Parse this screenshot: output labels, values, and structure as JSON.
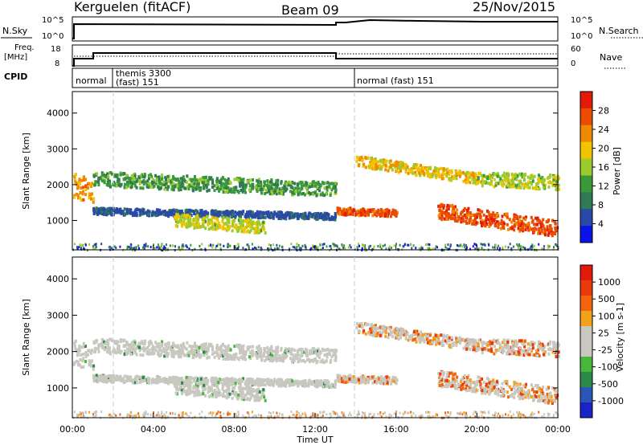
{
  "header": {
    "station": "Kerguelen (fitACF)",
    "beam": "Beam 09",
    "date": "25/Nov/2015"
  },
  "summary_panel": {
    "left_label": "N.Sky",
    "left_ticks": [
      "10^5",
      "10^0"
    ],
    "right_ticks": [
      "10^5",
      "10^0"
    ],
    "right_label": "N.Search"
  },
  "freq_panel": {
    "left_label_top": "Freq.",
    "left_label_unit": "[MHz]",
    "left_ticks": [
      "18",
      "8"
    ],
    "right_ticks": [
      "60",
      "0"
    ],
    "right_label": "Nave"
  },
  "cpid_panel": {
    "label": "CPID",
    "segments": [
      {
        "text": "normal"
      },
      {
        "text": "themis 3300",
        "text2": "(fast) 151"
      },
      {
        "text": "normal (fast) 151"
      }
    ]
  },
  "colors": {
    "power": [
      "#0a14e6",
      "#2a48a8",
      "#2f7a55",
      "#3a9a3a",
      "#9ccb2e",
      "#f2c300",
      "#f08a00",
      "#ea4d00",
      "#e31a0a"
    ],
    "velocity": [
      "#1a23c8",
      "#2a56b8",
      "#2b8a4a",
      "#48b83b",
      "#c8c8c0",
      "#c8c8c0",
      "#f3a01b",
      "#f2650e",
      "#ea3a0a",
      "#e31a0a"
    ],
    "gray": "#c8c8c0"
  },
  "chart_data": [
    {
      "type": "heatmap",
      "name": "power",
      "ylabel": "Slant Range [km]",
      "xlabel": "",
      "xlim": [
        0,
        24
      ],
      "ylim": [
        180,
        4600
      ],
      "yticks": [
        1000,
        2000,
        3000,
        4000
      ],
      "colorbar": {
        "label": "Power [dB]",
        "ticks": [
          "28",
          "24",
          "20",
          "16",
          "12",
          "8",
          "4"
        ],
        "range": [
          0,
          32
        ]
      },
      "bands": [
        {
          "x": [
            0.0,
            1.0
          ],
          "center": [
            2000,
            1850
          ],
          "width": 700,
          "power": [
            20,
            26
          ]
        },
        {
          "x": [
            1.0,
            13.0
          ],
          "center": [
            2200,
            1900
          ],
          "width": 400,
          "power": [
            8,
            16
          ]
        },
        {
          "x": [
            1.0,
            13.0
          ],
          "center": [
            1300,
            1150
          ],
          "width": 180,
          "power": [
            4,
            8
          ]
        },
        {
          "x": [
            5.0,
            9.5
          ],
          "center": [
            1050,
            850
          ],
          "width": 350,
          "power": [
            14,
            20
          ]
        },
        {
          "x": [
            13.0,
            16.0
          ],
          "center": [
            1300,
            1250
          ],
          "width": 200,
          "power": [
            24,
            30
          ]
        },
        {
          "x": [
            14.0,
            20.0
          ],
          "center": [
            2700,
            2200
          ],
          "width": 300,
          "power": [
            16,
            24
          ]
        },
        {
          "x": [
            18.0,
            24.0
          ],
          "center": [
            1300,
            800
          ],
          "width": 450,
          "power": [
            24,
            30
          ]
        },
        {
          "x": [
            20.0,
            24.0
          ],
          "center": [
            2200,
            2100
          ],
          "width": 400,
          "power": [
            12,
            20
          ]
        }
      ]
    },
    {
      "type": "heatmap",
      "name": "velocity",
      "ylabel": "Slant Range [km]",
      "xlabel": "Time UT",
      "xlim": [
        0,
        24
      ],
      "ylim": [
        180,
        4600
      ],
      "yticks": [
        1000,
        2000,
        3000,
        4000
      ],
      "xticks": [
        "00:00",
        "04:00",
        "08:00",
        "12:00",
        "16:00",
        "20:00",
        "00:00"
      ],
      "colorbar": {
        "label": "Velocity [m s-1]",
        "ticks": [
          "1000",
          "500",
          "100",
          "25",
          "-25",
          "-100",
          "-500",
          "-1000"
        ]
      }
    }
  ]
}
